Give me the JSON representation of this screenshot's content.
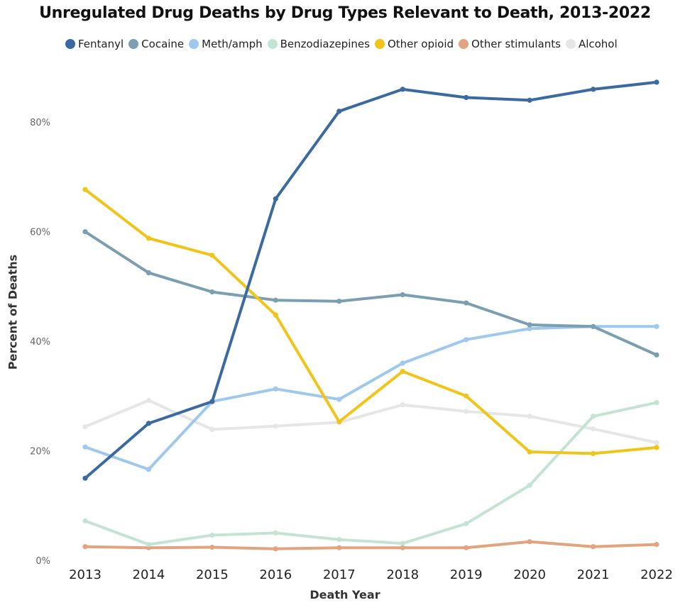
{
  "chart_data": {
    "type": "line",
    "title": "Unregulated Drug Deaths by Drug Types Relevant to Death, 2013-2022",
    "xlabel": "Death Year",
    "ylabel": "Percent of Deaths",
    "x": [
      "2013",
      "2014",
      "2015",
      "2016",
      "2017",
      "2018",
      "2019",
      "2020",
      "2021",
      "2022"
    ],
    "ylim": [
      0,
      0.9
    ],
    "yticks": [
      0,
      0.2,
      0.4,
      0.6,
      0.8
    ],
    "ytick_labels": [
      "0%",
      "20%",
      "40%",
      "60%",
      "80%"
    ],
    "grid": false,
    "legend_position": "top",
    "series": [
      {
        "name": "Fentanyl",
        "color": "#3a6aa0",
        "values": [
          0.15,
          0.25,
          0.29,
          0.66,
          0.82,
          0.86,
          0.845,
          0.84,
          0.86,
          0.873
        ]
      },
      {
        "name": "Cocaine",
        "color": "#7b9fb0",
        "values": [
          0.6,
          0.525,
          0.49,
          0.475,
          0.473,
          0.485,
          0.47,
          0.43,
          0.427,
          0.375
        ]
      },
      {
        "name": "Meth/amph",
        "color": "#9ec8ec",
        "values": [
          0.207,
          0.166,
          0.29,
          0.313,
          0.294,
          0.36,
          0.403,
          0.423,
          0.427,
          0.427
        ]
      },
      {
        "name": "Benzodiazepines",
        "color": "#c4e4d3",
        "values": [
          0.072,
          0.029,
          0.046,
          0.05,
          0.038,
          0.031,
          0.067,
          0.137,
          0.263,
          0.288
        ]
      },
      {
        "name": "Other opioid",
        "color": "#f0c419",
        "values": [
          0.677,
          0.588,
          0.557,
          0.448,
          0.253,
          0.345,
          0.3,
          0.198,
          0.195,
          0.206
        ]
      },
      {
        "name": "Other stimulants",
        "color": "#e2a47f",
        "values": [
          0.025,
          0.023,
          0.024,
          0.021,
          0.023,
          0.023,
          0.023,
          0.034,
          0.025,
          0.029
        ]
      },
      {
        "name": "Alcohol",
        "color": "#e6e6e6",
        "values": [
          0.244,
          0.292,
          0.239,
          0.245,
          0.252,
          0.284,
          0.272,
          0.263,
          0.24,
          0.215
        ]
      }
    ]
  }
}
